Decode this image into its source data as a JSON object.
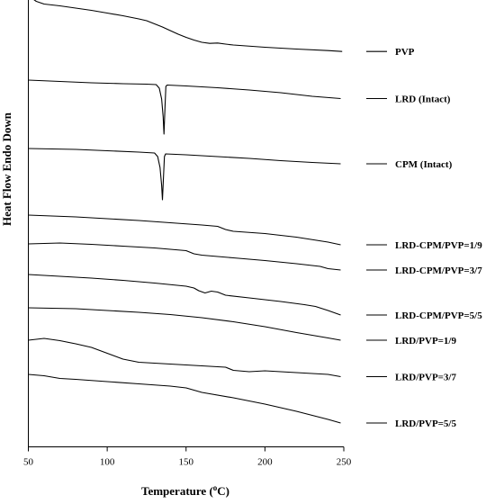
{
  "chart_data": {
    "type": "line",
    "title": "",
    "xlabel": "Temperature (",
    "xlabel_sup": "o",
    "xlabel_suffix": "C)",
    "ylabel": "Heat Flow Endo Down",
    "xlim": [
      50,
      250
    ],
    "x_ticks": [
      50,
      100,
      150,
      200,
      250
    ],
    "legend_placement": "right",
    "line_color": "#000000",
    "series": [
      {
        "name": "PVP",
        "points": [
          [
            53,
            -0.1
          ],
          [
            55,
            0.15
          ],
          [
            60,
            0.45
          ],
          [
            70,
            0.65
          ],
          [
            80,
            0.9
          ],
          [
            90,
            1.15
          ],
          [
            100,
            1.45
          ],
          [
            110,
            1.75
          ],
          [
            120,
            2.1
          ],
          [
            125,
            2.3
          ],
          [
            130,
            2.65
          ],
          [
            135,
            3.0
          ],
          [
            140,
            3.4
          ],
          [
            145,
            3.8
          ],
          [
            150,
            4.15
          ],
          [
            155,
            4.45
          ],
          [
            160,
            4.7
          ],
          [
            165,
            4.82
          ],
          [
            170,
            4.78
          ],
          [
            175,
            4.9
          ],
          [
            180,
            5.0
          ],
          [
            200,
            5.25
          ],
          [
            220,
            5.45
          ],
          [
            240,
            5.62
          ],
          [
            249,
            5.72
          ]
        ]
      },
      {
        "name": "LRD (Intact)",
        "points": [
          [
            50,
            8.9
          ],
          [
            70,
            9.05
          ],
          [
            90,
            9.2
          ],
          [
            110,
            9.3
          ],
          [
            125,
            9.35
          ],
          [
            131,
            9.4
          ],
          [
            133,
            9.8
          ],
          [
            134.5,
            11.0
          ],
          [
            135.5,
            13.0
          ],
          [
            136,
            14.9
          ],
          [
            136.6,
            12.0
          ],
          [
            137.2,
            9.6
          ],
          [
            138,
            9.45
          ],
          [
            150,
            9.55
          ],
          [
            170,
            9.75
          ],
          [
            190,
            10.0
          ],
          [
            210,
            10.3
          ],
          [
            230,
            10.7
          ],
          [
            248,
            10.95
          ]
        ]
      },
      {
        "name": "CPM (Intact)",
        "points": [
          [
            50,
            16.5
          ],
          [
            80,
            16.6
          ],
          [
            100,
            16.75
          ],
          [
            120,
            16.9
          ],
          [
            130,
            17.0
          ],
          [
            132,
            17.4
          ],
          [
            133.5,
            18.6
          ],
          [
            134.5,
            20.6
          ],
          [
            135,
            22.2
          ],
          [
            135.6,
            20.0
          ],
          [
            136.3,
            17.4
          ],
          [
            137,
            17.1
          ],
          [
            150,
            17.2
          ],
          [
            170,
            17.4
          ],
          [
            190,
            17.6
          ],
          [
            210,
            17.85
          ],
          [
            230,
            18.05
          ],
          [
            248,
            18.2
          ]
        ]
      },
      {
        "name": "LRD-CPM/PVP=1/9",
        "points": [
          [
            50,
            23.9
          ],
          [
            80,
            24.1
          ],
          [
            100,
            24.3
          ],
          [
            120,
            24.5
          ],
          [
            140,
            24.75
          ],
          [
            160,
            25.0
          ],
          [
            170,
            25.15
          ],
          [
            175,
            25.5
          ],
          [
            180,
            25.7
          ],
          [
            200,
            25.95
          ],
          [
            220,
            26.35
          ],
          [
            240,
            26.9
          ],
          [
            248,
            27.2
          ]
        ]
      },
      {
        "name": "LRD-CPM/PVP=3/7",
        "points": [
          [
            50,
            27.1
          ],
          [
            70,
            27.0
          ],
          [
            90,
            27.15
          ],
          [
            110,
            27.35
          ],
          [
            130,
            27.55
          ],
          [
            150,
            27.85
          ],
          [
            155,
            28.2
          ],
          [
            160,
            28.35
          ],
          [
            180,
            28.65
          ],
          [
            200,
            28.95
          ],
          [
            220,
            29.3
          ],
          [
            235,
            29.6
          ],
          [
            240,
            29.85
          ],
          [
            248,
            30.0
          ]
        ]
      },
      {
        "name": "LRD-CPM/PVP=5/5",
        "points": [
          [
            50,
            30.5
          ],
          [
            70,
            30.7
          ],
          [
            90,
            30.9
          ],
          [
            110,
            31.15
          ],
          [
            130,
            31.45
          ],
          [
            150,
            31.8
          ],
          [
            155,
            32.0
          ],
          [
            158,
            32.3
          ],
          [
            162,
            32.55
          ],
          [
            166,
            32.35
          ],
          [
            170,
            32.45
          ],
          [
            175,
            32.8
          ],
          [
            190,
            33.1
          ],
          [
            210,
            33.5
          ],
          [
            225,
            33.85
          ],
          [
            232,
            34.05
          ],
          [
            240,
            34.5
          ],
          [
            248,
            35.0
          ]
        ]
      },
      {
        "name": "LRD/PVP=1/9",
        "points": [
          [
            50,
            34.2
          ],
          [
            80,
            34.3
          ],
          [
            100,
            34.5
          ],
          [
            120,
            34.7
          ],
          [
            140,
            34.95
          ],
          [
            160,
            35.3
          ],
          [
            180,
            35.75
          ],
          [
            200,
            36.3
          ],
          [
            220,
            36.95
          ],
          [
            240,
            37.55
          ],
          [
            248,
            37.8
          ]
        ]
      },
      {
        "name": "LRD/PVP=3/7",
        "points": [
          [
            50,
            37.8
          ],
          [
            60,
            37.6
          ],
          [
            70,
            37.85
          ],
          [
            80,
            38.2
          ],
          [
            90,
            38.6
          ],
          [
            100,
            39.25
          ],
          [
            110,
            39.9
          ],
          [
            120,
            40.25
          ],
          [
            140,
            40.45
          ],
          [
            160,
            40.65
          ],
          [
            175,
            40.8
          ],
          [
            180,
            41.15
          ],
          [
            190,
            41.3
          ],
          [
            200,
            41.2
          ],
          [
            220,
            41.4
          ],
          [
            240,
            41.6
          ],
          [
            248,
            41.85
          ]
        ]
      },
      {
        "name": "LRD/PVP=5/5",
        "points": [
          [
            50,
            41.6
          ],
          [
            60,
            41.75
          ],
          [
            70,
            42.05
          ],
          [
            80,
            42.15
          ],
          [
            100,
            42.4
          ],
          [
            120,
            42.65
          ],
          [
            140,
            42.9
          ],
          [
            150,
            43.1
          ],
          [
            160,
            43.6
          ],
          [
            180,
            44.2
          ],
          [
            200,
            44.9
          ],
          [
            220,
            45.7
          ],
          [
            240,
            46.6
          ],
          [
            248,
            47.0
          ]
        ]
      }
    ]
  }
}
